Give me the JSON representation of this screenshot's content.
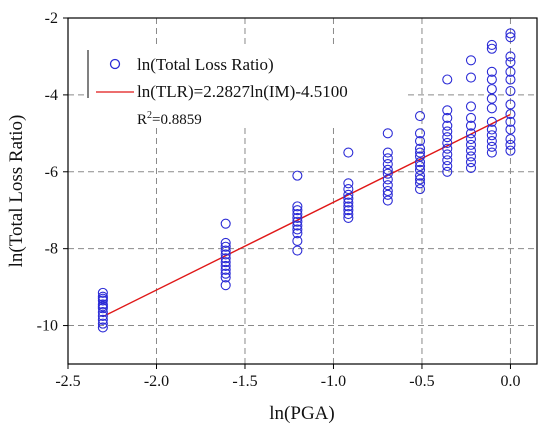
{
  "chart_data": {
    "type": "scatter",
    "xlabel": "ln(PGA)",
    "ylabel": "ln(Total Loss Ratio)",
    "xlim": [
      -2.5,
      0.15
    ],
    "ylim": [
      -11,
      -2
    ],
    "xticks": [
      -2.5,
      -2.0,
      -1.5,
      -1.0,
      -0.5,
      0.0
    ],
    "xtick_labels": [
      "-2.5",
      "-2.0",
      "-1.5",
      "-1.0",
      "-0.5",
      "0.0"
    ],
    "yticks": [
      -10,
      -8,
      -6,
      -4,
      -2
    ],
    "ytick_labels": [
      "-10",
      "-8",
      "-6",
      "-4",
      "-2"
    ],
    "grid": true,
    "legend_position": "top-left",
    "colors": {
      "scatter": "#2b2bd6",
      "fit": "#e01818",
      "grid": "#8a8a8a",
      "axis": "#000000"
    },
    "series": [
      {
        "name": "ln(Total Loss Ratio)",
        "type": "scatter",
        "marker": "open-circle",
        "points": [
          {
            "x": -2.303,
            "y": -9.15
          },
          {
            "x": -2.303,
            "y": -9.25
          },
          {
            "x": -2.303,
            "y": -9.35
          },
          {
            "x": -2.303,
            "y": -9.45
          },
          {
            "x": -2.303,
            "y": -9.55
          },
          {
            "x": -2.303,
            "y": -9.65
          },
          {
            "x": -2.303,
            "y": -9.75
          },
          {
            "x": -2.303,
            "y": -9.85
          },
          {
            "x": -2.303,
            "y": -9.95
          },
          {
            "x": -2.303,
            "y": -10.05
          },
          {
            "x": -2.303,
            "y": -9.3
          },
          {
            "x": -2.303,
            "y": -9.5
          },
          {
            "x": -1.609,
            "y": -7.35
          },
          {
            "x": -1.609,
            "y": -7.85
          },
          {
            "x": -1.609,
            "y": -7.95
          },
          {
            "x": -1.609,
            "y": -8.05
          },
          {
            "x": -1.609,
            "y": -8.15
          },
          {
            "x": -1.609,
            "y": -8.25
          },
          {
            "x": -1.609,
            "y": -8.35
          },
          {
            "x": -1.609,
            "y": -8.45
          },
          {
            "x": -1.609,
            "y": -8.55
          },
          {
            "x": -1.609,
            "y": -8.65
          },
          {
            "x": -1.609,
            "y": -8.75
          },
          {
            "x": -1.609,
            "y": -8.95
          },
          {
            "x": -1.204,
            "y": -6.1
          },
          {
            "x": -1.204,
            "y": -6.9
          },
          {
            "x": -1.204,
            "y": -7.0
          },
          {
            "x": -1.204,
            "y": -7.1
          },
          {
            "x": -1.204,
            "y": -7.2
          },
          {
            "x": -1.204,
            "y": -7.3
          },
          {
            "x": -1.204,
            "y": -7.4
          },
          {
            "x": -1.204,
            "y": -7.5
          },
          {
            "x": -1.204,
            "y": -7.6
          },
          {
            "x": -1.204,
            "y": -7.8
          },
          {
            "x": -1.204,
            "y": -8.05
          },
          {
            "x": -0.916,
            "y": -5.5
          },
          {
            "x": -0.916,
            "y": -6.3
          },
          {
            "x": -0.916,
            "y": -6.45
          },
          {
            "x": -0.916,
            "y": -6.6
          },
          {
            "x": -0.916,
            "y": -6.7
          },
          {
            "x": -0.916,
            "y": -6.8
          },
          {
            "x": -0.916,
            "y": -6.9
          },
          {
            "x": -0.916,
            "y": -7.0
          },
          {
            "x": -0.916,
            "y": -7.1
          },
          {
            "x": -0.916,
            "y": -7.2
          },
          {
            "x": -0.693,
            "y": -5.0
          },
          {
            "x": -0.693,
            "y": -5.5
          },
          {
            "x": -0.693,
            "y": -5.65
          },
          {
            "x": -0.693,
            "y": -5.8
          },
          {
            "x": -0.693,
            "y": -5.95
          },
          {
            "x": -0.693,
            "y": -6.05
          },
          {
            "x": -0.693,
            "y": -6.2
          },
          {
            "x": -0.693,
            "y": -6.35
          },
          {
            "x": -0.693,
            "y": -6.5
          },
          {
            "x": -0.693,
            "y": -6.6
          },
          {
            "x": -0.693,
            "y": -6.75
          },
          {
            "x": -0.511,
            "y": -4.55
          },
          {
            "x": -0.511,
            "y": -5.0
          },
          {
            "x": -0.511,
            "y": -5.2
          },
          {
            "x": -0.511,
            "y": -5.4
          },
          {
            "x": -0.511,
            "y": -5.5
          },
          {
            "x": -0.511,
            "y": -5.6
          },
          {
            "x": -0.511,
            "y": -5.75
          },
          {
            "x": -0.511,
            "y": -5.85
          },
          {
            "x": -0.511,
            "y": -5.95
          },
          {
            "x": -0.511,
            "y": -6.1
          },
          {
            "x": -0.511,
            "y": -6.2
          },
          {
            "x": -0.511,
            "y": -6.3
          },
          {
            "x": -0.511,
            "y": -6.45
          },
          {
            "x": -0.357,
            "y": -3.6
          },
          {
            "x": -0.357,
            "y": -4.4
          },
          {
            "x": -0.357,
            "y": -4.6
          },
          {
            "x": -0.357,
            "y": -4.8
          },
          {
            "x": -0.357,
            "y": -4.95
          },
          {
            "x": -0.357,
            "y": -5.1
          },
          {
            "x": -0.357,
            "y": -5.25
          },
          {
            "x": -0.357,
            "y": -5.4
          },
          {
            "x": -0.357,
            "y": -5.55
          },
          {
            "x": -0.357,
            "y": -5.7
          },
          {
            "x": -0.357,
            "y": -5.85
          },
          {
            "x": -0.357,
            "y": -6.0
          },
          {
            "x": -0.223,
            "y": -3.1
          },
          {
            "x": -0.223,
            "y": -3.55
          },
          {
            "x": -0.223,
            "y": -4.3
          },
          {
            "x": -0.223,
            "y": -4.6
          },
          {
            "x": -0.223,
            "y": -4.8
          },
          {
            "x": -0.223,
            "y": -5.0
          },
          {
            "x": -0.223,
            "y": -5.15
          },
          {
            "x": -0.223,
            "y": -5.3
          },
          {
            "x": -0.223,
            "y": -5.45
          },
          {
            "x": -0.223,
            "y": -5.6
          },
          {
            "x": -0.223,
            "y": -5.75
          },
          {
            "x": -0.223,
            "y": -5.9
          },
          {
            "x": -0.105,
            "y": -2.7
          },
          {
            "x": -0.105,
            "y": -2.8
          },
          {
            "x": -0.105,
            "y": -3.4
          },
          {
            "x": -0.105,
            "y": -3.6
          },
          {
            "x": -0.105,
            "y": -3.85
          },
          {
            "x": -0.105,
            "y": -4.1
          },
          {
            "x": -0.105,
            "y": -4.35
          },
          {
            "x": -0.105,
            "y": -4.7
          },
          {
            "x": -0.105,
            "y": -4.9
          },
          {
            "x": -0.105,
            "y": -5.05
          },
          {
            "x": -0.105,
            "y": -5.2
          },
          {
            "x": -0.105,
            "y": -5.35
          },
          {
            "x": -0.105,
            "y": -5.5
          },
          {
            "x": 0.0,
            "y": -2.4
          },
          {
            "x": 0.0,
            "y": -2.5
          },
          {
            "x": 0.0,
            "y": -3.0
          },
          {
            "x": 0.0,
            "y": -3.15
          },
          {
            "x": 0.0,
            "y": -3.4
          },
          {
            "x": 0.0,
            "y": -3.6
          },
          {
            "x": 0.0,
            "y": -3.9
          },
          {
            "x": 0.0,
            "y": -4.25
          },
          {
            "x": 0.0,
            "y": -4.5
          },
          {
            "x": 0.0,
            "y": -4.7
          },
          {
            "x": 0.0,
            "y": -4.9
          },
          {
            "x": 0.0,
            "y": -5.15
          },
          {
            "x": 0.0,
            "y": -5.3
          },
          {
            "x": 0.0,
            "y": -5.45
          }
        ]
      },
      {
        "name": "ln(TLR)=2.2827ln(IM)-4.5100",
        "type": "line",
        "slope": 2.2827,
        "intercept": -4.51,
        "x_range": [
          -2.303,
          0.0
        ]
      }
    ],
    "annotations": {
      "r2_prefix": "R",
      "r2_sup": "2",
      "r2_value": "=0.8859"
    }
  }
}
